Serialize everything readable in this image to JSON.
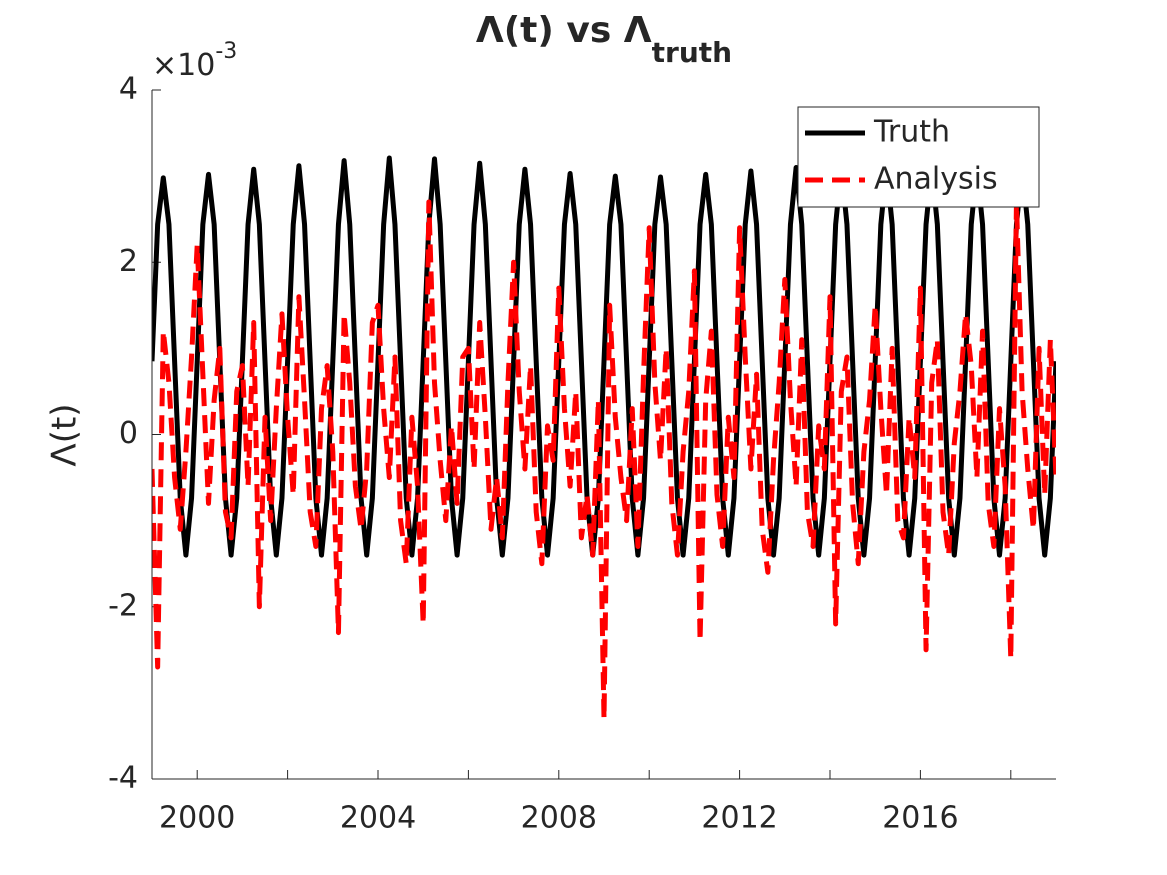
{
  "chart_data": {
    "type": "line",
    "title": "Λ(t) vs Λ",
    "title_subscript": "truth",
    "y_label": "Λ(t)",
    "y_multiplier": "×10",
    "y_multiplier_exponent": "-3",
    "xlim": [
      1999,
      2019
    ],
    "xticks": [
      2000,
      2004,
      2008,
      2012,
      2016
    ],
    "xminorticks": [
      2002,
      2006,
      2010,
      2014,
      2018
    ],
    "ylim": [
      -4,
      4
    ],
    "yticks": [
      4,
      2,
      0,
      -2,
      -4
    ],
    "legend": "northeast",
    "grid": false,
    "x": [
      1999,
      1999.125,
      1999.25,
      1999.375,
      1999.5,
      1999.625,
      1999.75,
      1999.875,
      2000,
      2000.125,
      2000.25,
      2000.375,
      2000.5,
      2000.625,
      2000.75,
      2000.875,
      2001,
      2001.125,
      2001.25,
      2001.375,
      2001.5,
      2001.625,
      2001.75,
      2001.875,
      2002,
      2002.125,
      2002.25,
      2002.375,
      2002.5,
      2002.625,
      2002.75,
      2002.875,
      2003,
      2003.125,
      2003.25,
      2003.375,
      2003.5,
      2003.625,
      2003.75,
      2003.875,
      2004,
      2004.125,
      2004.25,
      2004.375,
      2004.5,
      2004.625,
      2004.75,
      2004.875,
      2005,
      2005.125,
      2005.25,
      2005.375,
      2005.5,
      2005.625,
      2005.75,
      2005.875,
      2006,
      2006.125,
      2006.25,
      2006.375,
      2006.5,
      2006.625,
      2006.75,
      2006.875,
      2007,
      2007.125,
      2007.25,
      2007.375,
      2007.5,
      2007.625,
      2007.75,
      2007.875,
      2008,
      2008.125,
      2008.25,
      2008.375,
      2008.5,
      2008.625,
      2008.75,
      2008.875,
      2009,
      2009.125,
      2009.25,
      2009.375,
      2009.5,
      2009.625,
      2009.75,
      2009.875,
      2010,
      2010.125,
      2010.25,
      2010.375,
      2010.5,
      2010.625,
      2010.75,
      2010.875,
      2011,
      2011.125,
      2011.25,
      2011.375,
      2011.5,
      2011.625,
      2011.75,
      2011.875,
      2012,
      2012.125,
      2012.25,
      2012.375,
      2012.5,
      2012.625,
      2012.75,
      2012.875,
      2013,
      2013.125,
      2013.25,
      2013.375,
      2013.5,
      2013.625,
      2013.75,
      2013.875,
      2014,
      2014.125,
      2014.25,
      2014.375,
      2014.5,
      2014.625,
      2014.75,
      2014.875,
      2015,
      2015.125,
      2015.25,
      2015.375,
      2015.5,
      2015.625,
      2015.75,
      2015.875,
      2016,
      2016.125,
      2016.25,
      2016.375,
      2016.5,
      2016.625,
      2016.75,
      2016.875,
      2017,
      2017.125,
      2017.25,
      2017.375,
      2017.5,
      2017.625,
      2017.75,
      2017.875,
      2018,
      2018.125,
      2018.25,
      2018.375,
      2018.5,
      2018.625,
      2018.75,
      2018.875,
      2019
    ],
    "series": [
      {
        "name": "Truth",
        "color": "#000000",
        "dash": false,
        "values": [
          0.85,
          2.44,
          2.98,
          2.44,
          0.85,
          -0.74,
          -1.4,
          -0.74,
          0.85,
          2.44,
          3.02,
          2.44,
          0.85,
          -0.74,
          -1.4,
          -0.74,
          0.85,
          2.44,
          3.08,
          2.44,
          0.85,
          -0.74,
          -1.4,
          -0.74,
          0.85,
          2.44,
          3.12,
          2.44,
          0.85,
          -0.74,
          -1.4,
          -0.74,
          0.85,
          2.44,
          3.18,
          2.44,
          0.85,
          -0.74,
          -1.4,
          -0.74,
          0.85,
          2.44,
          3.21,
          2.44,
          0.85,
          -0.74,
          -1.4,
          -0.74,
          0.85,
          2.44,
          3.2,
          2.44,
          0.85,
          -0.74,
          -1.4,
          -0.74,
          0.85,
          2.44,
          3.15,
          2.44,
          0.85,
          -0.74,
          -1.4,
          -0.74,
          0.85,
          2.44,
          3.08,
          2.44,
          0.85,
          -0.74,
          -1.4,
          -0.74,
          0.85,
          2.44,
          3.03,
          2.44,
          0.85,
          -0.74,
          -1.4,
          -0.74,
          0.85,
          2.44,
          3.0,
          2.44,
          0.85,
          -0.74,
          -1.4,
          -0.74,
          0.85,
          2.44,
          2.99,
          2.44,
          0.85,
          -0.74,
          -1.4,
          -0.74,
          0.85,
          2.44,
          3.02,
          2.44,
          0.85,
          -0.74,
          -1.4,
          -0.74,
          0.85,
          2.44,
          3.06,
          2.44,
          0.85,
          -0.74,
          -1.4,
          -0.74,
          0.85,
          2.44,
          3.1,
          2.44,
          0.85,
          -0.74,
          -1.4,
          -0.74,
          0.85,
          2.44,
          3.1,
          2.44,
          0.85,
          -0.74,
          -1.4,
          -0.74,
          0.85,
          2.44,
          3.1,
          2.44,
          0.85,
          -0.74,
          -1.4,
          -0.74,
          0.85,
          2.44,
          3.1,
          2.44,
          0.85,
          -0.74,
          -1.4,
          -0.74,
          0.85,
          2.44,
          3.1,
          2.44,
          0.85,
          -0.74,
          -1.4,
          -0.74,
          0.85,
          2.44,
          3.1,
          2.44,
          0.85,
          -0.74,
          -1.4,
          -0.74,
          0.85
        ]
      },
      {
        "name": "Analysis",
        "color": "#ff0000",
        "dash": true,
        "values": [
          -0.4,
          -2.7,
          1.2,
          0.6,
          -0.5,
          -1.1,
          -0.2,
          0.9,
          2.2,
          0.7,
          -0.8,
          0.4,
          1.0,
          -0.9,
          -1.2,
          0.5,
          0.8,
          -0.6,
          1.3,
          -2.0,
          0.2,
          -1.0,
          0.3,
          1.4,
          0.2,
          -0.7,
          1.6,
          0.4,
          -0.9,
          -1.3,
          0.3,
          0.8,
          -0.2,
          -2.3,
          1.4,
          0.6,
          -0.6,
          -1.1,
          -0.4,
          1.3,
          1.5,
          0.3,
          -0.5,
          0.9,
          -1.0,
          -1.5,
          0.2,
          -0.6,
          -2.2,
          2.7,
          0.6,
          -0.3,
          -1.0,
          0.1,
          -0.8,
          0.9,
          1.0,
          -0.4,
          1.3,
          0.2,
          -1.1,
          -0.5,
          -1.2,
          0.6,
          2.0,
          0.5,
          -0.4,
          0.8,
          -0.9,
          -1.5,
          0.1,
          -0.3,
          1.7,
          0.3,
          -0.6,
          0.5,
          -1.2,
          -0.7,
          -1.4,
          0.4,
          -3.3,
          1.5,
          0.2,
          -0.5,
          -1.0,
          0.3,
          -1.3,
          0.7,
          2.4,
          0.6,
          -0.3,
          1.0,
          -0.8,
          -1.4,
          -0.2,
          0.5,
          1.9,
          -2.4,
          0.4,
          1.2,
          -0.7,
          -1.3,
          0.2,
          -0.5,
          2.4,
          0.9,
          -0.4,
          0.7,
          -1.1,
          -1.6,
          -0.3,
          0.6,
          1.8,
          0.4,
          -0.6,
          1.1,
          -0.9,
          -1.3,
          0.1,
          -0.4,
          1.6,
          -2.2,
          0.5,
          0.9,
          -0.8,
          -1.5,
          -0.2,
          0.4,
          1.5,
          0.3,
          -0.7,
          1.0,
          -1.0,
          -1.2,
          0.2,
          -0.5,
          1.7,
          -2.5,
          0.6,
          1.1,
          -0.9,
          -1.4,
          -0.1,
          0.5,
          1.4,
          0.8,
          -0.5,
          1.2,
          -0.8,
          -1.3,
          0.3,
          -0.6,
          -2.6,
          2.7,
          0.5,
          -0.4,
          -1.1,
          1.0,
          -0.7,
          1.1,
          -0.5
        ]
      }
    ]
  }
}
